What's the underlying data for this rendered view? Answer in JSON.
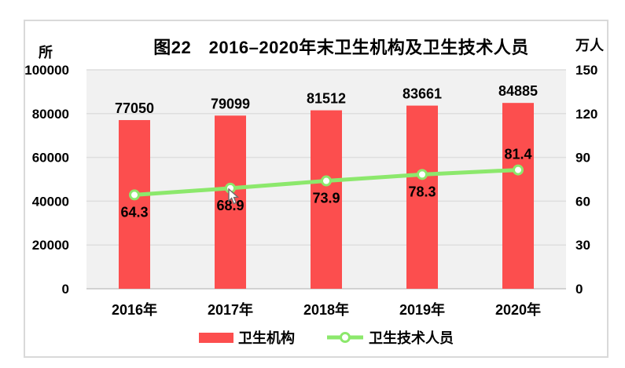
{
  "chart": {
    "title": "图22　2016–2020年末卫生机构及卫生技术人员",
    "left_axis_unit": "所",
    "right_axis_unit": "万人"
  },
  "chart_data": {
    "type": "bar+line combo",
    "title": "图22　2016–2020年末卫生机构及卫生技术人员",
    "categories": [
      "2016年",
      "2017年",
      "2018年",
      "2019年",
      "2020年"
    ],
    "series": [
      {
        "name": "卫生机构",
        "type": "bar",
        "axis": "left",
        "values": [
          77050,
          79099,
          81512,
          83661,
          84885
        ],
        "labels": [
          "77050",
          "79099",
          "81512",
          "83661",
          "84885"
        ]
      },
      {
        "name": "卫生技术人员",
        "type": "line",
        "axis": "right",
        "values": [
          64.3,
          68.9,
          73.9,
          78.3,
          81.4
        ],
        "labels": [
          "64.3",
          "68.9",
          "73.9",
          "78.3",
          "81.4"
        ],
        "label_positions": [
          "below",
          "below",
          "below",
          "below",
          "above"
        ]
      }
    ],
    "left_axis": {
      "unit": "所",
      "min": 0,
      "max": 100000,
      "step": 20000,
      "ticks": [
        100000,
        80000,
        60000,
        40000,
        20000,
        0
      ]
    },
    "right_axis": {
      "unit": "万人",
      "min": 0,
      "max": 150,
      "step": 30,
      "ticks": [
        150,
        120,
        90,
        60,
        30,
        0
      ]
    },
    "grid": true,
    "legend_position": "bottom"
  },
  "colors": {
    "bar": "#FC4E4E",
    "line": "#8CE86C",
    "marker_fill": "#FFFFFF",
    "plot_bg": "#F1F1F1",
    "grid": "#DEDEDE",
    "axis_line": "#C6C6C6",
    "text": "#000000",
    "frame_border": "#D9D9D9"
  }
}
